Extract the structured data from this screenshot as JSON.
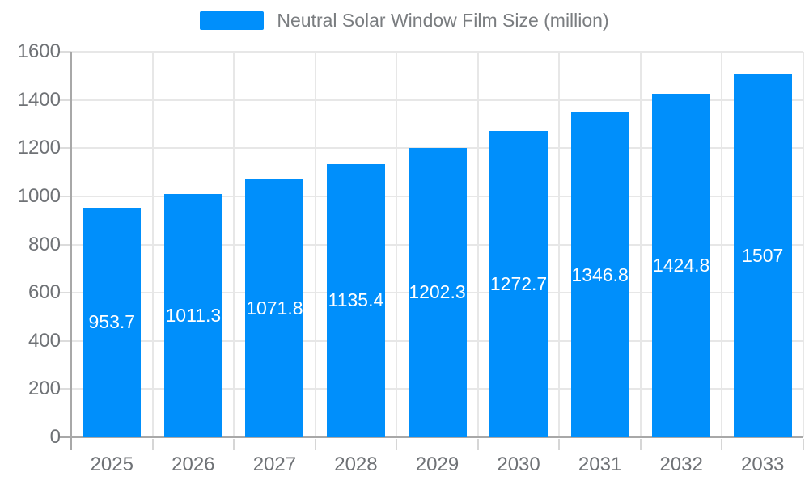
{
  "chart_data": {
    "type": "bar",
    "title": "Neutral Solar Window Film Size (million)",
    "categories": [
      "2025",
      "2026",
      "2027",
      "2028",
      "2029",
      "2030",
      "2031",
      "2032",
      "2033"
    ],
    "values": [
      953.7,
      1011.3,
      1071.8,
      1135.4,
      1202.3,
      1272.7,
      1346.8,
      1424.8,
      1507
    ],
    "value_labels": [
      "953.7",
      "1011.3",
      "1071.8",
      "1135.4",
      "1202.3",
      "1272.7",
      "1346.8",
      "1424.8",
      "1507"
    ],
    "ytick_labels": [
      "0",
      "200",
      "400",
      "600",
      "800",
      "1000",
      "1200",
      "1400",
      "1600"
    ],
    "ylim": [
      0,
      1600
    ],
    "ytick_step": 200,
    "grid": true,
    "legend_position": "top-center",
    "xlabel": "",
    "ylabel": "",
    "bar_color": "#008FFB",
    "bar_label_color": "#ffffff"
  }
}
